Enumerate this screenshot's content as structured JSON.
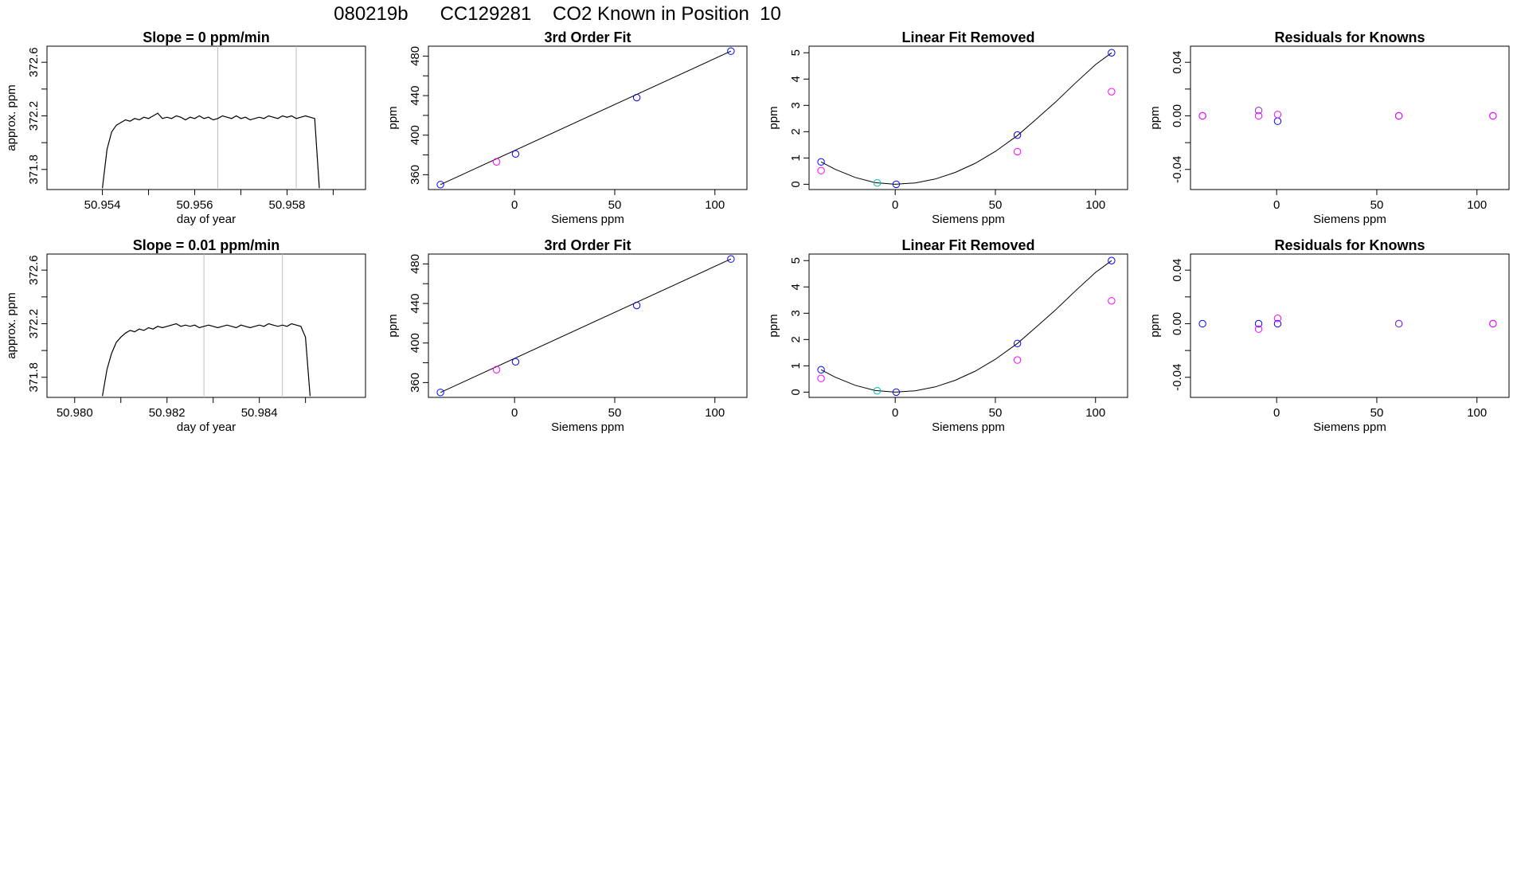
{
  "page_title": "080219b      CC129281    CO2 Known in Position  10",
  "colors": {
    "line": "#000000",
    "frame": "#000000",
    "refline": "#bebebe",
    "point_blue": "#0000ff",
    "point_magenta": "#ff00ff",
    "point_cyan": "#00bfbf",
    "point_purple": "#8a2be2"
  },
  "chart_data": [
    {
      "type": "line",
      "title": "Slope =  0  ppm/min",
      "xlabel": "day of year",
      "ylabel": "approx. ppm",
      "xlim": [
        50.9528,
        50.9597
      ],
      "ylim": [
        371.65,
        372.72
      ],
      "x_ticks": [
        "50.954",
        "50.956",
        "50.958"
      ],
      "x_tick_values": [
        50.954,
        50.955,
        50.956,
        50.957,
        50.958,
        50.959
      ],
      "y_ticks": [
        "371.8",
        "372.2",
        "372.6"
      ],
      "y_tick_values": [
        371.8,
        372.0,
        372.2,
        372.4,
        372.6
      ],
      "vlines": [
        50.9565,
        50.9582
      ],
      "series": [
        {
          "x": [
            50.954,
            50.9541,
            50.9542,
            50.9543,
            50.9544,
            50.9545,
            50.9546,
            50.9547,
            50.9548,
            50.9549,
            50.955,
            50.9551,
            50.9552,
            50.9553,
            50.9554,
            50.9555,
            50.9556,
            50.9557,
            50.9558,
            50.9559,
            50.956,
            50.9561,
            50.9562,
            50.9563,
            50.9564,
            50.9565,
            50.9566,
            50.9567,
            50.9568,
            50.9569,
            50.957,
            50.9571,
            50.9572,
            50.9573,
            50.9574,
            50.9575,
            50.9576,
            50.9577,
            50.9578,
            50.9579,
            50.958,
            50.9581,
            50.9582,
            50.9583,
            50.9584,
            50.9585,
            50.9586,
            50.9587
          ],
          "y": [
            371.66,
            371.95,
            372.08,
            372.13,
            372.15,
            372.17,
            372.16,
            372.18,
            372.17,
            372.19,
            372.18,
            372.2,
            372.22,
            372.18,
            372.19,
            372.18,
            372.2,
            372.19,
            372.17,
            372.19,
            372.18,
            372.2,
            372.18,
            372.19,
            372.17,
            372.18,
            372.2,
            372.19,
            372.18,
            372.2,
            372.18,
            372.19,
            372.17,
            372.18,
            372.19,
            372.18,
            372.2,
            372.19,
            372.18,
            372.2,
            372.19,
            372.2,
            372.18,
            372.19,
            372.2,
            372.19,
            372.18,
            371.66
          ]
        }
      ]
    },
    {
      "type": "scatter",
      "title": "3rd Order Fit",
      "xlabel": "Siemens ppm",
      "ylabel": "ppm",
      "xlim": [
        -43,
        116
      ],
      "ylim": [
        345,
        490
      ],
      "x_ticks": [
        "0",
        "50",
        "100"
      ],
      "x_tick_values": [
        0,
        50,
        100
      ],
      "y_ticks": [
        "360",
        "400",
        "440",
        "480"
      ],
      "y_tick_values": [
        360,
        380,
        400,
        420,
        440,
        460,
        480
      ],
      "line": {
        "x": [
          -37,
          108
        ],
        "y": [
          350,
          485
        ]
      },
      "series": [
        {
          "color": "blue",
          "x": [
            -37,
            0.5,
            61,
            108
          ],
          "y": [
            350,
            381,
            438,
            485
          ]
        },
        {
          "color": "magenta",
          "x": [
            -9
          ],
          "y": [
            373
          ]
        }
      ]
    },
    {
      "type": "scatter",
      "title": "Linear Fit Removed",
      "xlabel": "Siemens ppm",
      "ylabel": "ppm",
      "xlim": [
        -43,
        116
      ],
      "ylim": [
        -0.2,
        5.25
      ],
      "x_ticks": [
        "0",
        "50",
        "100"
      ],
      "x_tick_values": [
        0,
        50,
        100
      ],
      "y_ticks": [
        "0",
        "1",
        "2",
        "3",
        "4",
        "5"
      ],
      "y_tick_values": [
        0,
        1,
        2,
        3,
        4,
        5
      ],
      "curve": {
        "x": [
          -37,
          -30,
          -20,
          -10,
          0,
          10,
          20,
          30,
          40,
          50,
          61,
          70,
          80,
          90,
          100,
          108
        ],
        "y": [
          0.85,
          0.57,
          0.26,
          0.06,
          0.0,
          0.05,
          0.2,
          0.45,
          0.8,
          1.25,
          1.85,
          2.45,
          3.12,
          3.85,
          4.55,
          5.0
        ]
      },
      "series": [
        {
          "color": "blue",
          "x": [
            -37,
            0.5,
            61,
            108
          ],
          "y": [
            0.85,
            0.0,
            1.87,
            5.0
          ]
        },
        {
          "color": "magenta",
          "x": [
            -37,
            61,
            108
          ],
          "y": [
            0.52,
            1.24,
            3.52
          ]
        },
        {
          "color": "cyan",
          "x": [
            -9
          ],
          "y": [
            0.05
          ]
        }
      ]
    },
    {
      "type": "scatter",
      "title": "Residuals for Knowns",
      "xlabel": "Siemens ppm",
      "ylabel": "ppm",
      "xlim": [
        -43,
        116
      ],
      "ylim": [
        -0.055,
        0.052
      ],
      "x_ticks": [
        "0",
        "50",
        "100"
      ],
      "x_tick_values": [
        0,
        50,
        100
      ],
      "y_ticks": [
        "-0.04",
        "0.00",
        "0.04"
      ],
      "y_tick_values": [
        -0.04,
        -0.02,
        0.0,
        0.02,
        0.04
      ],
      "series": [
        {
          "color": "blue",
          "x": [
            -37,
            0.5,
            61,
            108
          ],
          "y": [
            0.0,
            -0.004,
            0.0,
            0.0
          ]
        },
        {
          "color": "magenta",
          "x": [
            -37,
            -9,
            0.5,
            61,
            108
          ],
          "y": [
            0.0,
            0.0,
            0.001,
            0.0,
            0.0
          ]
        },
        {
          "color": "purple",
          "x": [
            -9
          ],
          "y": [
            0.004
          ]
        }
      ]
    },
    {
      "type": "line",
      "title": "Slope =  0.01  ppm/min",
      "xlabel": "day of year",
      "ylabel": "approx. ppm",
      "xlim": [
        50.9794,
        50.9863
      ],
      "ylim": [
        371.65,
        372.72
      ],
      "x_ticks": [
        "50.980",
        "50.982",
        "50.984"
      ],
      "x_tick_values": [
        50.98,
        50.981,
        50.982,
        50.983,
        50.984,
        50.985
      ],
      "y_ticks": [
        "371.8",
        "372.2",
        "372.6"
      ],
      "y_tick_values": [
        371.8,
        372.0,
        372.2,
        372.4,
        372.6
      ],
      "vlines": [
        50.9828,
        50.9845
      ],
      "series": [
        {
          "x": [
            50.9806,
            50.9807,
            50.9808,
            50.9809,
            50.981,
            50.9811,
            50.9812,
            50.9813,
            50.9814,
            50.9815,
            50.9816,
            50.9817,
            50.9818,
            50.9819,
            50.982,
            50.9821,
            50.9822,
            50.9823,
            50.9824,
            50.9825,
            50.9826,
            50.9827,
            50.9828,
            50.9829,
            50.983,
            50.9831,
            50.9832,
            50.9833,
            50.9834,
            50.9835,
            50.9836,
            50.9837,
            50.9838,
            50.9839,
            50.984,
            50.9841,
            50.9842,
            50.9843,
            50.9844,
            50.9845,
            50.9846,
            50.9847,
            50.9848,
            50.9849,
            50.985,
            50.9851
          ],
          "y": [
            371.66,
            371.86,
            371.98,
            372.06,
            372.1,
            372.13,
            372.15,
            372.14,
            372.16,
            372.15,
            372.17,
            372.16,
            372.18,
            372.17,
            372.18,
            372.19,
            372.2,
            372.18,
            372.19,
            372.18,
            372.19,
            372.17,
            372.18,
            372.19,
            372.18,
            372.17,
            372.18,
            372.19,
            372.18,
            372.17,
            372.19,
            372.18,
            372.17,
            372.18,
            372.19,
            372.18,
            372.2,
            372.19,
            372.18,
            372.19,
            372.18,
            372.2,
            372.19,
            372.18,
            372.1,
            371.66
          ]
        }
      ]
    },
    {
      "type": "scatter",
      "title": "3rd Order Fit",
      "xlabel": "Siemens ppm",
      "ylabel": "ppm",
      "xlim": [
        -43,
        116
      ],
      "ylim": [
        345,
        490
      ],
      "x_ticks": [
        "0",
        "50",
        "100"
      ],
      "x_tick_values": [
        0,
        50,
        100
      ],
      "y_ticks": [
        "360",
        "400",
        "440",
        "480"
      ],
      "y_tick_values": [
        360,
        380,
        400,
        420,
        440,
        460,
        480
      ],
      "line": {
        "x": [
          -37,
          108
        ],
        "y": [
          350,
          485
        ]
      },
      "series": [
        {
          "color": "blue",
          "x": [
            -37,
            0.5,
            61,
            108
          ],
          "y": [
            350,
            381,
            438,
            485
          ]
        },
        {
          "color": "magenta",
          "x": [
            -9
          ],
          "y": [
            373
          ]
        }
      ]
    },
    {
      "type": "scatter",
      "title": "Linear Fit Removed",
      "xlabel": "Siemens ppm",
      "ylabel": "ppm",
      "xlim": [
        -43,
        116
      ],
      "ylim": [
        -0.2,
        5.25
      ],
      "x_ticks": [
        "0",
        "50",
        "100"
      ],
      "x_tick_values": [
        0,
        50,
        100
      ],
      "y_ticks": [
        "0",
        "1",
        "2",
        "3",
        "4",
        "5"
      ],
      "y_tick_values": [
        0,
        1,
        2,
        3,
        4,
        5
      ],
      "curve": {
        "x": [
          -37,
          -30,
          -20,
          -10,
          0,
          10,
          20,
          30,
          40,
          50,
          61,
          70,
          80,
          90,
          100,
          108
        ],
        "y": [
          0.85,
          0.57,
          0.26,
          0.06,
          0.0,
          0.05,
          0.2,
          0.45,
          0.8,
          1.25,
          1.85,
          2.45,
          3.12,
          3.85,
          4.55,
          5.0
        ]
      },
      "series": [
        {
          "color": "blue",
          "x": [
            -37,
            0.5,
            61,
            108
          ],
          "y": [
            0.85,
            0.0,
            1.85,
            5.0
          ]
        },
        {
          "color": "magenta",
          "x": [
            -37,
            61,
            108
          ],
          "y": [
            0.52,
            1.22,
            3.47
          ]
        },
        {
          "color": "cyan",
          "x": [
            -9
          ],
          "y": [
            0.05
          ]
        }
      ]
    },
    {
      "type": "scatter",
      "title": "Residuals for Knowns",
      "xlabel": "Siemens ppm",
      "ylabel": "ppm",
      "xlim": [
        -43,
        116
      ],
      "ylim": [
        -0.055,
        0.052
      ],
      "x_ticks": [
        "0",
        "50",
        "100"
      ],
      "x_tick_values": [
        0,
        50,
        100
      ],
      "y_ticks": [
        "-0.04",
        "0.00",
        "0.04"
      ],
      "y_tick_values": [
        -0.04,
        -0.02,
        0.0,
        0.02,
        0.04
      ],
      "series": [
        {
          "color": "blue",
          "x": [
            -37,
            -9,
            0.5,
            61,
            108
          ],
          "y": [
            0.0,
            0.0,
            0.0,
            0.0,
            0.0
          ]
        },
        {
          "color": "magenta",
          "x": [
            -9,
            0.5,
            108
          ],
          "y": [
            -0.004,
            0.004,
            0.0
          ]
        },
        {
          "color": "purple",
          "x": [
            61
          ],
          "y": [
            0.0
          ]
        }
      ]
    }
  ]
}
